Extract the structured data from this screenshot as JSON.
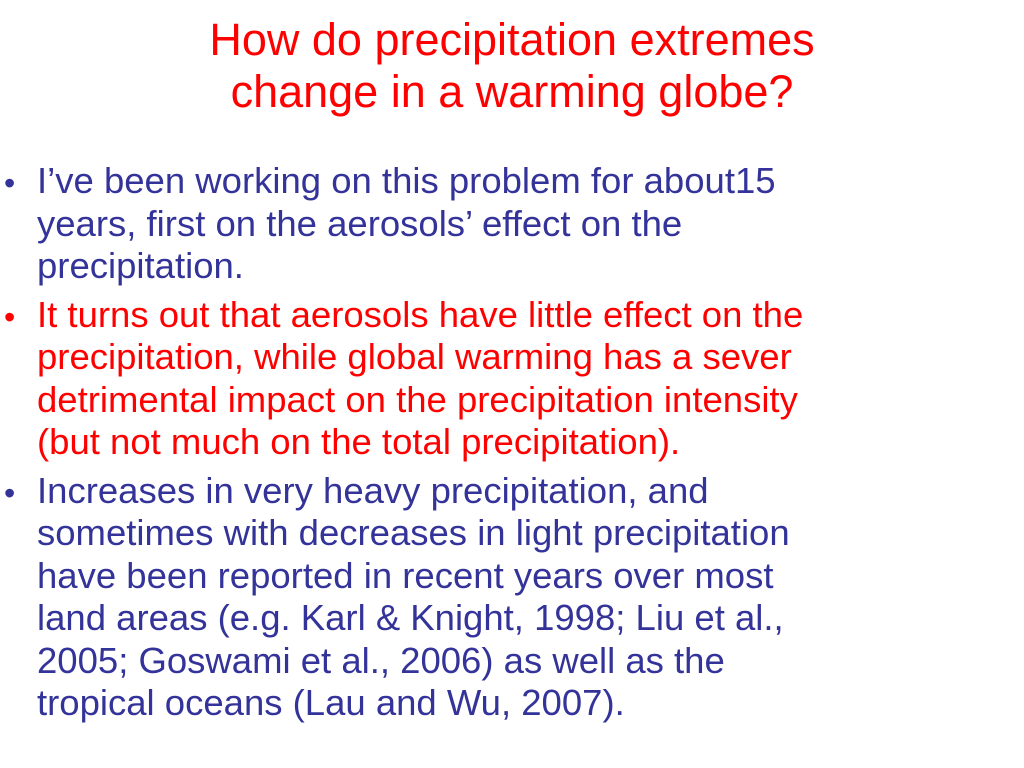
{
  "slide": {
    "title_lines": [
      "How do precipitation extremes",
      "change in a warming globe?"
    ],
    "colors": {
      "title": "#ff0000",
      "body": "#333399",
      "highlight": "#ff0000",
      "background": "#ffffff"
    },
    "bullet_symbol": "•",
    "bullets": [
      {
        "lines": [
          "I’ve been working on this problem for about15",
          "years, first on the aerosols’ effect on the",
          "precipitation."
        ]
      },
      {
        "lines": [
          "It turns out that aerosols have little effect on the",
          "precipitation, while global warming has a sever",
          "detrimental impact on the precipitation intensity",
          "(but not much on the total precipitation)."
        ]
      },
      {
        "lines": [
          "Increases in very heavy precipitation, and",
          "sometimes with decreases in light precipitation",
          "have been reported in recent years over most",
          "land areas (e.g. Karl & Knight, 1998; Liu et al.,",
          "2005; Goswami et al., 2006) as well as the",
          "tropical oceans (Lau and Wu, 2007)."
        ]
      }
    ]
  }
}
